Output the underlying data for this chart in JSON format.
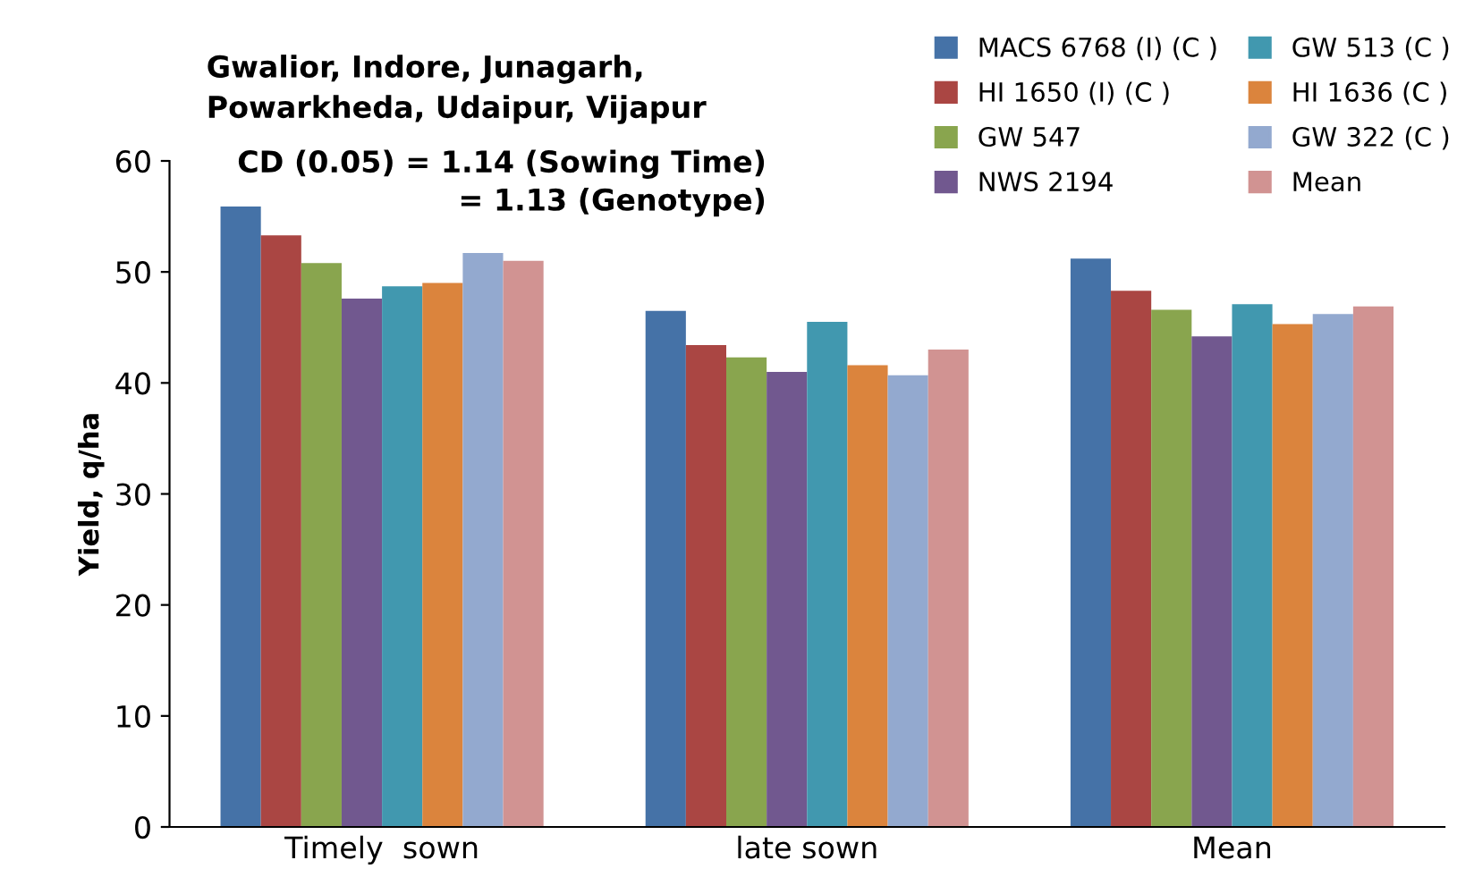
{
  "chart_data": {
    "type": "bar",
    "title": "Gwalior, Indore, Junagarh,\nPowarkheda, Udaipur, Vijapur",
    "ylabel": "Yield, q/ha",
    "annotations": [
      "CD (0.05) = 1.14 (Sowing Time)\n= 1.13 (Genotype)"
    ],
    "categories": [
      "Timely  sown",
      "late sown",
      "Mean"
    ],
    "series": [
      {
        "name": "MACS 6768 (I) (C )",
        "color": "#4572a7",
        "values": [
          55.9,
          46.5,
          51.2
        ]
      },
      {
        "name": "HI 1650 (I) (C )",
        "color": "#aa4643",
        "values": [
          53.3,
          43.4,
          48.3
        ]
      },
      {
        "name": "GW 547",
        "color": "#89a54e",
        "values": [
          50.8,
          42.3,
          46.6
        ]
      },
      {
        "name": "NWS 2194",
        "color": "#71588f",
        "values": [
          47.6,
          41.0,
          44.2
        ]
      },
      {
        "name": "GW 513 (C )",
        "color": "#4198af",
        "values": [
          48.7,
          45.5,
          47.1
        ]
      },
      {
        "name": "HI 1636 (C )",
        "color": "#db843d",
        "values": [
          49.0,
          41.6,
          45.3
        ]
      },
      {
        "name": "GW 322 (C )",
        "color": "#93a9cf",
        "values": [
          51.7,
          40.7,
          46.2
        ]
      },
      {
        "name": "Mean",
        "color": "#d19392",
        "values": [
          51.0,
          43.0,
          46.9
        ]
      }
    ],
    "ylim": [
      0,
      60
    ],
    "yticks": [
      0,
      10,
      20,
      30,
      40,
      50,
      60
    ],
    "grid": false,
    "legend": "top right"
  }
}
